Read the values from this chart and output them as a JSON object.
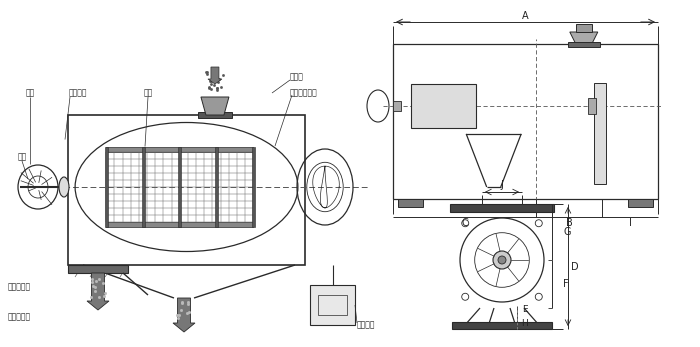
{
  "bg_color": "#ffffff",
  "lc": "#2a2a2a",
  "tc": "#222222",
  "gray1": "#888888",
  "gray2": "#aaaaaa",
  "gray3": "#cccccc",
  "gray4": "#444444",
  "labels": {
    "fenglu": "风轮",
    "fengluyepian": "风轮叶片",
    "wangjia": "网架",
    "zhuzou": "主轴",
    "jinliakou": "进料口",
    "luoshu": "螺旋输送系统",
    "culiao": "粗料排出口",
    "xiliao": "细料排出口",
    "qudong": "驱动电机",
    "A": "A",
    "B": "B",
    "C": "C",
    "I": "I",
    "J": "J",
    "G": "G",
    "F": "F",
    "D": "D",
    "E": "E",
    "H": "H"
  }
}
